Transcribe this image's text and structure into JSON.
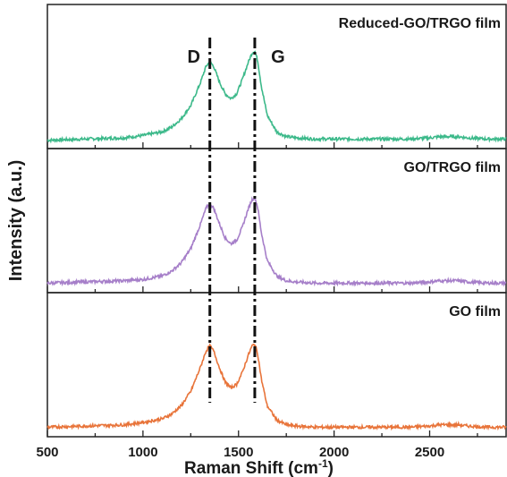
{
  "chart_data": {
    "type": "line",
    "xlabel": "Raman Shift (cm",
    "xlabel_sup": "-1",
    "xlabel_close": ")",
    "ylabel": "Intensity (a.u.)",
    "xlim": [
      500,
      2900
    ],
    "xticks": [
      500,
      1000,
      1500,
      2000,
      2500
    ],
    "yticks_shown": false,
    "grid": false,
    "stacked": true,
    "peak_lines": [
      {
        "label": "D",
        "x": 1350
      },
      {
        "label": "G",
        "x": 1585
      }
    ],
    "x": [
      500,
      700,
      900,
      1000,
      1100,
      1150,
      1200,
      1250,
      1300,
      1330,
      1350,
      1370,
      1400,
      1430,
      1460,
      1490,
      1520,
      1550,
      1570,
      1585,
      1600,
      1620,
      1650,
      1700,
      1750,
      1800,
      1900,
      2000,
      2200,
      2400,
      2500,
      2550,
      2600,
      2650,
      2700,
      2800,
      2900
    ],
    "series": [
      {
        "name": "GO film",
        "color": "#e8743a",
        "values": [
          0.02,
          0.03,
          0.04,
          0.06,
          0.09,
          0.13,
          0.2,
          0.32,
          0.52,
          0.66,
          0.7,
          0.66,
          0.52,
          0.4,
          0.35,
          0.38,
          0.48,
          0.62,
          0.7,
          0.72,
          0.64,
          0.42,
          0.2,
          0.08,
          0.04,
          0.03,
          0.02,
          0.02,
          0.02,
          0.02,
          0.03,
          0.04,
          0.04,
          0.04,
          0.03,
          0.02,
          0.02
        ]
      },
      {
        "name": "GO/TRGO film",
        "color": "#a67fc9",
        "values": [
          0.02,
          0.03,
          0.04,
          0.05,
          0.08,
          0.12,
          0.19,
          0.31,
          0.51,
          0.65,
          0.69,
          0.65,
          0.52,
          0.4,
          0.35,
          0.38,
          0.49,
          0.64,
          0.72,
          0.74,
          0.66,
          0.44,
          0.21,
          0.08,
          0.04,
          0.03,
          0.02,
          0.02,
          0.02,
          0.02,
          0.03,
          0.04,
          0.04,
          0.04,
          0.03,
          0.02,
          0.02
        ]
      },
      {
        "name": "Reduced-GO/TRGO film",
        "color": "#3cb98a",
        "values": [
          0.01,
          0.02,
          0.03,
          0.05,
          0.08,
          0.12,
          0.19,
          0.3,
          0.49,
          0.63,
          0.67,
          0.63,
          0.5,
          0.4,
          0.36,
          0.4,
          0.52,
          0.66,
          0.74,
          0.76,
          0.68,
          0.46,
          0.22,
          0.08,
          0.04,
          0.03,
          0.02,
          0.02,
          0.02,
          0.02,
          0.03,
          0.04,
          0.04,
          0.04,
          0.03,
          0.02,
          0.02
        ]
      }
    ]
  }
}
